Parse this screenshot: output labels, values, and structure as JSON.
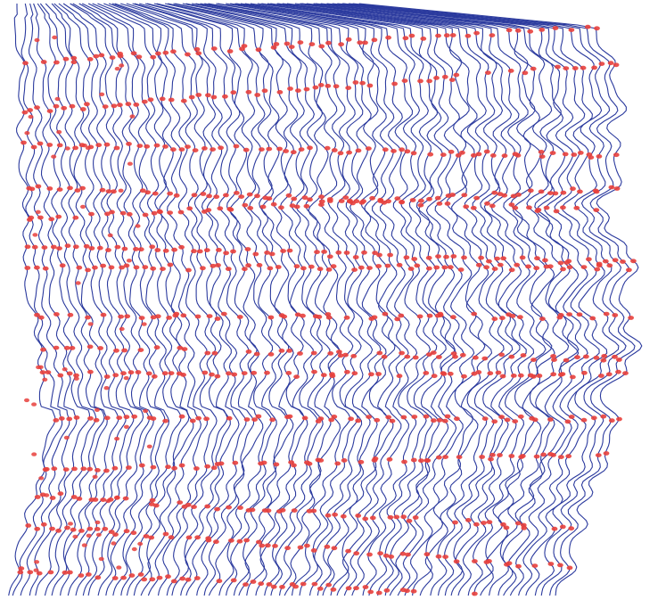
{
  "figure": {
    "kind": "seismic-horizon-trace-plot",
    "trace_color": "#2b3a9e",
    "pick_color": "#e8403c",
    "background": "#ffffff",
    "trace_count": 74,
    "horizon_count": 15
  }
}
